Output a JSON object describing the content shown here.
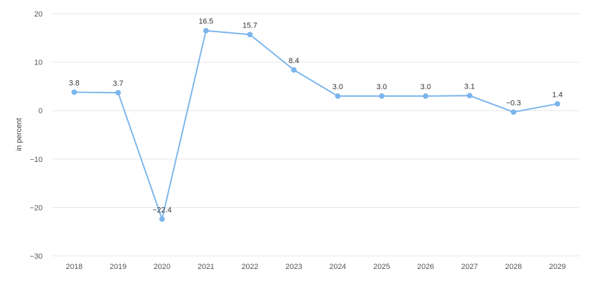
{
  "chart_data": {
    "type": "line",
    "title": "",
    "xlabel": "",
    "ylabel": "in percent",
    "x": [
      "2018",
      "2019",
      "2020",
      "2021",
      "2022",
      "2023",
      "2024",
      "2025",
      "2026",
      "2027",
      "2028",
      "2029"
    ],
    "series": [
      {
        "values": [
          3.8,
          3.7,
          -22.4,
          16.5,
          15.7,
          8.4,
          3.0,
          3.0,
          3.0,
          3.1,
          -0.3,
          1.4
        ],
        "data_labels": [
          "3.8",
          "3.7",
          "−22.4",
          "16.5",
          "15.7",
          "8.4",
          "3.0",
          "3.0",
          "3.0",
          "3.1",
          "−0.3",
          "1.4"
        ],
        "color": "#7cb5ec"
      }
    ],
    "yticks": [
      20,
      10,
      0,
      -10,
      -20,
      -30
    ],
    "ytick_labels": [
      "20",
      "10",
      "0",
      "−10",
      "−20",
      "−30"
    ],
    "ylim": [
      -30,
      20
    ],
    "grid": true,
    "legend": "none"
  }
}
